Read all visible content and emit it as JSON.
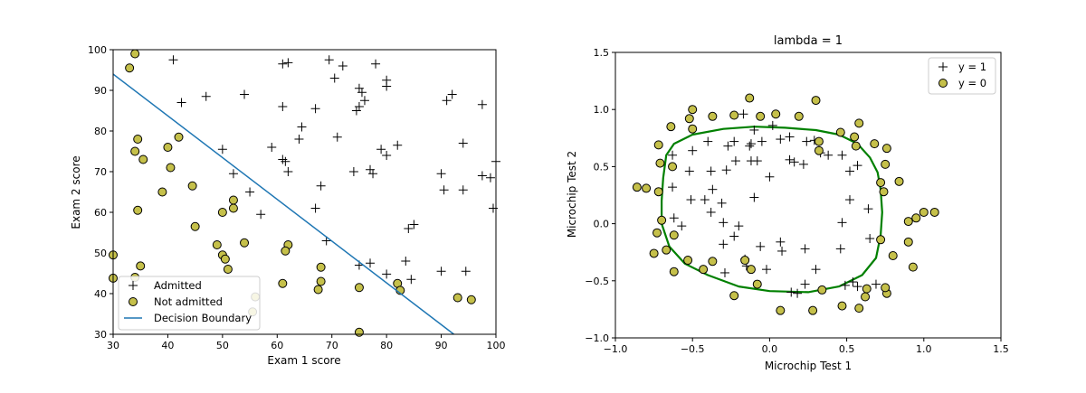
{
  "colors": {
    "marker_fill": "#c5c04a",
    "marker_edge": "#000000",
    "boundary_line": "#1f77b4",
    "contour_line": "#008000"
  },
  "chart_data": [
    {
      "type": "scatter",
      "title": "",
      "xlabel": "Exam 1 score",
      "ylabel": "Exam 2 score",
      "xlim": [
        30,
        100
      ],
      "ylim": [
        30,
        100
      ],
      "xticks": [
        "30",
        "40",
        "50",
        "60",
        "70",
        "80",
        "90",
        "100"
      ],
      "yticks": [
        "30",
        "40",
        "50",
        "60",
        "70",
        "80",
        "90",
        "100"
      ],
      "grid": false,
      "legend_position": "lower-left",
      "legend": [
        "Admitted",
        "Not admitted",
        "Decision Boundary"
      ],
      "series": [
        {
          "name": "Admitted",
          "marker": "plus",
          "points": [
            [
              41,
              97.5
            ],
            [
              42.5,
              87
            ],
            [
              47,
              88.5
            ],
            [
              54,
              89
            ],
            [
              61,
              96.5
            ],
            [
              62,
              96.8
            ],
            [
              61,
              86
            ],
            [
              64.5,
              81
            ],
            [
              64,
              78
            ],
            [
              67,
              85.5
            ],
            [
              69.5,
              97.5
            ],
            [
              70.5,
              93
            ],
            [
              72,
              96
            ],
            [
              74.5,
              85
            ],
            [
              75,
              86
            ],
            [
              75.5,
              89.5
            ],
            [
              75,
              90.5
            ],
            [
              76,
              87.5
            ],
            [
              78,
              96.5
            ],
            [
              80,
              92.5
            ],
            [
              80,
              91
            ],
            [
              82,
              76.5
            ],
            [
              79,
              75.5
            ],
            [
              80,
              74
            ],
            [
              77,
              70.5
            ],
            [
              77.5,
              69.5
            ],
            [
              74,
              70
            ],
            [
              71,
              78.5
            ],
            [
              59,
              76
            ],
            [
              61,
              73
            ],
            [
              61.5,
              72.5
            ],
            [
              62,
              70
            ],
            [
              68,
              66.5
            ],
            [
              67,
              61
            ],
            [
              52,
              69.5
            ],
            [
              50,
              75.5
            ],
            [
              55,
              65
            ],
            [
              57,
              59.5
            ],
            [
              69,
              53
            ],
            [
              75,
              47
            ],
            [
              77,
              47.5
            ],
            [
              80,
              44.8
            ],
            [
              83.5,
              48
            ],
            [
              84,
              56
            ],
            [
              85,
              57
            ],
            [
              84.5,
              43.5
            ],
            [
              90,
              69.5
            ],
            [
              91,
              87.5
            ],
            [
              92,
              89
            ],
            [
              94,
              77
            ],
            [
              94,
              65.5
            ],
            [
              97.5,
              86.5
            ],
            [
              97.5,
              69
            ],
            [
              99,
              68.5
            ],
            [
              100,
              72.5
            ],
            [
              99.5,
              61
            ],
            [
              90,
              45.5
            ],
            [
              94.5,
              45.5
            ],
            [
              90.5,
              65.5
            ]
          ]
        },
        {
          "name": "Not admitted",
          "marker": "circle",
          "points": [
            [
              34,
              99
            ],
            [
              33,
              95.5
            ],
            [
              34.5,
              78
            ],
            [
              34,
              75
            ],
            [
              35.5,
              73
            ],
            [
              34.5,
              60.5
            ],
            [
              30,
              49.5
            ],
            [
              30,
              43.8
            ],
            [
              34,
              44
            ],
            [
              35,
              46.8
            ],
            [
              40,
              76
            ],
            [
              40.5,
              71
            ],
            [
              42,
              78.5
            ],
            [
              39,
              65
            ],
            [
              44.5,
              66.5
            ],
            [
              45,
              56.5
            ],
            [
              49,
              52
            ],
            [
              50,
              60
            ],
            [
              50,
              49.5
            ],
            [
              50.5,
              48.5
            ],
            [
              51,
              46
            ],
            [
              52,
              63
            ],
            [
              52,
              61
            ],
            [
              54,
              52.5
            ],
            [
              56,
              39.2
            ],
            [
              55.5,
              35.5
            ],
            [
              61,
              42.5
            ],
            [
              62,
              52
            ],
            [
              61.5,
              50.5
            ],
            [
              67.5,
              41
            ],
            [
              68,
              43
            ],
            [
              68,
              46.5
            ],
            [
              75,
              41.5
            ],
            [
              75,
              30.5
            ],
            [
              82,
              42.5
            ],
            [
              82.5,
              40.8
            ],
            [
              93,
              39
            ],
            [
              95.5,
              38.5
            ]
          ]
        },
        {
          "name": "Decision Boundary",
          "marker": "line",
          "points": [
            [
              30,
              94
            ],
            [
              92.3,
              30
            ]
          ]
        }
      ]
    },
    {
      "type": "scatter",
      "title": "lambda = 1",
      "xlabel": "Microchip Test 1",
      "ylabel": "Microchip Test 2",
      "xlim": [
        -1.0,
        1.5
      ],
      "ylim": [
        -1.0,
        1.5
      ],
      "xticks": [
        "−1.0",
        "−0.5",
        "0.0",
        "0.5",
        "1.0",
        "1.5"
      ],
      "yticks": [
        "−1.0",
        "−0.5",
        "0.0",
        "0.5",
        "1.0",
        "1.5"
      ],
      "grid": false,
      "legend_position": "top-right",
      "legend": [
        "y = 1",
        "y = 0"
      ],
      "series": [
        {
          "name": "y = 1",
          "marker": "plus",
          "points": [
            [
              -0.63,
              0.6
            ],
            [
              -0.5,
              0.64
            ],
            [
              -0.4,
              0.72
            ],
            [
              -0.27,
              0.68
            ],
            [
              -0.23,
              0.72
            ],
            [
              -0.17,
              0.96
            ],
            [
              -0.1,
              0.82
            ],
            [
              -0.05,
              0.72
            ],
            [
              0.07,
              0.74
            ],
            [
              0.13,
              0.76
            ],
            [
              0.24,
              0.72
            ],
            [
              0.29,
              0.73
            ],
            [
              0.33,
              0.62
            ],
            [
              0.38,
              0.6
            ],
            [
              0.47,
              0.6
            ],
            [
              -0.52,
              0.46
            ],
            [
              -0.38,
              0.46
            ],
            [
              -0.28,
              0.47
            ],
            [
              -0.22,
              0.55
            ],
            [
              -0.13,
              0.68
            ],
            [
              -0.12,
              0.55
            ],
            [
              -0.08,
              0.55
            ],
            [
              0.0,
              0.41
            ],
            [
              0.13,
              0.56
            ],
            [
              0.16,
              0.54
            ],
            [
              0.22,
              0.52
            ],
            [
              0.52,
              0.46
            ],
            [
              -0.51,
              0.21
            ],
            [
              -0.42,
              0.21
            ],
            [
              -0.37,
              0.3
            ],
            [
              -0.38,
              0.1
            ],
            [
              -0.31,
              0.18
            ],
            [
              -0.1,
              0.23
            ],
            [
              -0.3,
              0.01
            ],
            [
              -0.2,
              -0.02
            ],
            [
              -0.63,
              0.32
            ],
            [
              -0.62,
              0.05
            ],
            [
              -0.57,
              -0.02
            ],
            [
              -0.3,
              -0.18
            ],
            [
              -0.23,
              -0.11
            ],
            [
              -0.06,
              -0.2
            ],
            [
              0.07,
              -0.16
            ],
            [
              -0.02,
              -0.4
            ],
            [
              -0.16,
              -0.31
            ],
            [
              0.23,
              -0.22
            ],
            [
              0.3,
              -0.4
            ],
            [
              0.46,
              -0.22
            ],
            [
              0.52,
              0.21
            ],
            [
              0.64,
              0.13
            ],
            [
              0.47,
              0.01
            ],
            [
              0.65,
              -0.13
            ],
            [
              0.49,
              -0.54
            ],
            [
              0.54,
              -0.51
            ],
            [
              0.57,
              -0.55
            ],
            [
              0.69,
              -0.53
            ],
            [
              0.23,
              -0.53
            ],
            [
              0.14,
              -0.6
            ],
            [
              0.18,
              -0.61
            ],
            [
              -0.29,
              -0.43
            ],
            [
              -0.15,
              -0.37
            ],
            [
              0.08,
              -0.24
            ],
            [
              0.57,
              0.51
            ],
            [
              -0.12,
              0.7
            ],
            [
              0.02,
              0.86
            ]
          ]
        },
        {
          "name": "y = 0",
          "marker": "circle",
          "points": [
            [
              -0.13,
              1.1
            ],
            [
              0.3,
              1.08
            ],
            [
              -0.5,
              1.0
            ],
            [
              -0.52,
              0.92
            ],
            [
              -0.37,
              0.94
            ],
            [
              -0.23,
              0.95
            ],
            [
              -0.06,
              0.94
            ],
            [
              0.04,
              0.96
            ],
            [
              0.19,
              0.94
            ],
            [
              -0.64,
              0.85
            ],
            [
              -0.5,
              0.83
            ],
            [
              -0.72,
              0.69
            ],
            [
              -0.71,
              0.53
            ],
            [
              -0.8,
              0.31
            ],
            [
              -0.72,
              0.28
            ],
            [
              -0.63,
              0.5
            ],
            [
              -0.86,
              0.32
            ],
            [
              -0.7,
              0.03
            ],
            [
              -0.73,
              -0.08
            ],
            [
              -0.62,
              -0.1
            ],
            [
              -0.75,
              -0.26
            ],
            [
              -0.67,
              -0.23
            ],
            [
              -0.53,
              -0.32
            ],
            [
              -0.62,
              -0.42
            ],
            [
              -0.43,
              -0.4
            ],
            [
              -0.37,
              -0.33
            ],
            [
              -0.16,
              -0.32
            ],
            [
              -0.12,
              -0.4
            ],
            [
              -0.23,
              -0.63
            ],
            [
              -0.08,
              -0.53
            ],
            [
              0.07,
              -0.76
            ],
            [
              0.28,
              -0.76
            ],
            [
              0.58,
              -0.74
            ],
            [
              0.47,
              -0.72
            ],
            [
              0.62,
              -0.64
            ],
            [
              0.76,
              -0.61
            ],
            [
              0.93,
              -0.38
            ],
            [
              0.9,
              -0.16
            ],
            [
              0.72,
              -0.14
            ],
            [
              0.63,
              -0.57
            ],
            [
              0.34,
              -0.58
            ],
            [
              0.32,
              0.64
            ],
            [
              0.32,
              0.72
            ],
            [
              0.46,
              0.8
            ],
            [
              0.55,
              0.76
            ],
            [
              0.58,
              0.88
            ],
            [
              0.68,
              0.7
            ],
            [
              0.56,
              0.68
            ],
            [
              0.76,
              0.66
            ],
            [
              0.75,
              0.52
            ],
            [
              0.72,
              0.36
            ],
            [
              0.74,
              0.28
            ],
            [
              0.84,
              0.37
            ],
            [
              1.0,
              0.1
            ],
            [
              0.95,
              0.05
            ],
            [
              0.9,
              0.02
            ],
            [
              1.07,
              0.1
            ],
            [
              0.75,
              -0.56
            ],
            [
              0.8,
              -0.28
            ]
          ]
        }
      ],
      "decision_boundary": {
        "name": "decision boundary",
        "points": [
          [
            -0.67,
            0.6
          ],
          [
            -0.62,
            0.7
          ],
          [
            -0.5,
            0.78
          ],
          [
            -0.3,
            0.83
          ],
          [
            -0.1,
            0.85
          ],
          [
            0.1,
            0.84
          ],
          [
            0.3,
            0.82
          ],
          [
            0.45,
            0.78
          ],
          [
            0.57,
            0.7
          ],
          [
            0.65,
            0.58
          ],
          [
            0.7,
            0.45
          ],
          [
            0.72,
            0.3
          ],
          [
            0.73,
            0.1
          ],
          [
            0.72,
            -0.1
          ],
          [
            0.69,
            -0.3
          ],
          [
            0.6,
            -0.45
          ],
          [
            0.45,
            -0.55
          ],
          [
            0.25,
            -0.6
          ],
          [
            0.0,
            -0.59
          ],
          [
            -0.2,
            -0.55
          ],
          [
            -0.4,
            -0.45
          ],
          [
            -0.55,
            -0.35
          ],
          [
            -0.65,
            -0.2
          ],
          [
            -0.7,
            0.0
          ],
          [
            -0.7,
            0.2
          ],
          [
            -0.69,
            0.4
          ],
          [
            -0.67,
            0.6
          ]
        ]
      }
    }
  ]
}
